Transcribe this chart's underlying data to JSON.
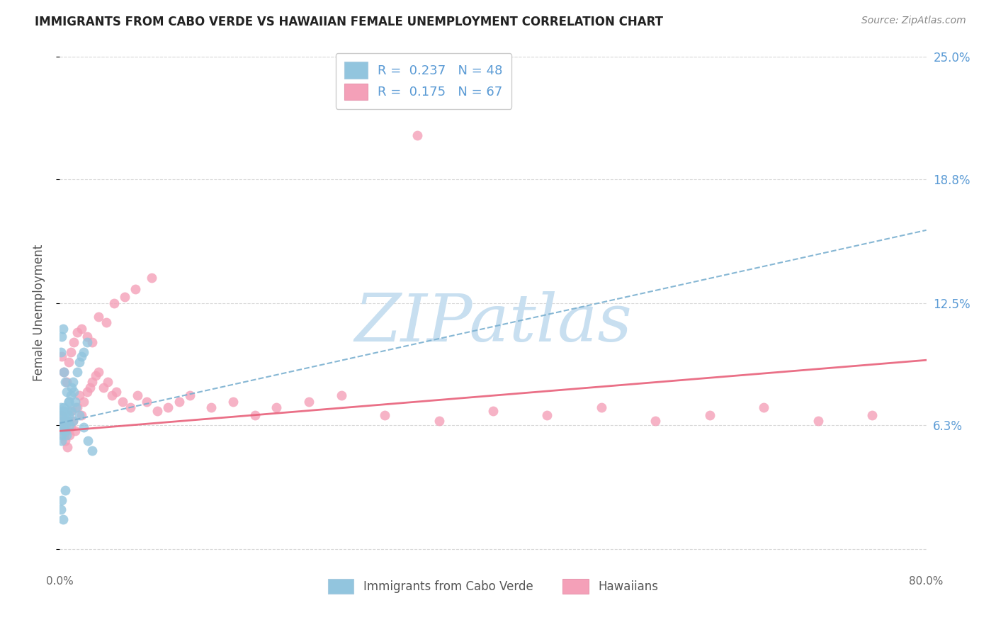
{
  "title": "IMMIGRANTS FROM CABO VERDE VS HAWAIIAN FEMALE UNEMPLOYMENT CORRELATION CHART",
  "source": "Source: ZipAtlas.com",
  "ylabel": "Female Unemployment",
  "legend_label1": "Immigrants from Cabo Verde",
  "legend_label2": "Hawaiians",
  "R1": 0.237,
  "N1": 48,
  "R2": 0.175,
  "N2": 67,
  "xmin": 0.0,
  "xmax": 0.8,
  "ymin": -0.01,
  "ymax": 0.25,
  "yticks": [
    0.0,
    0.063,
    0.125,
    0.188,
    0.25
  ],
  "ytick_labels": [
    "",
    "6.3%",
    "12.5%",
    "18.8%",
    "25.0%"
  ],
  "xticks": [
    0.0,
    0.1,
    0.2,
    0.3,
    0.4,
    0.5,
    0.6,
    0.7,
    0.8
  ],
  "xtick_labels": [
    "0.0%",
    "",
    "",
    "",
    "",
    "",
    "",
    "",
    "80.0%"
  ],
  "color_blue": "#92c5de",
  "color_pink": "#f4a0b8",
  "color_blue_line": "#7ab0d0",
  "color_pink_line": "#e8607a",
  "color_axis_right": "#5b9bd5",
  "watermark_color": "#c8dff0",
  "background_color": "#ffffff",
  "grid_color": "#d8d8d8",
  "blue_line_x0": 0.0,
  "blue_line_y0": 0.064,
  "blue_line_x1": 0.8,
  "blue_line_y1": 0.162,
  "pink_line_x0": 0.0,
  "pink_line_y0": 0.06,
  "pink_line_x1": 0.8,
  "pink_line_y1": 0.096,
  "blue_scatter_x": [
    0.001,
    0.001,
    0.002,
    0.002,
    0.002,
    0.003,
    0.003,
    0.003,
    0.004,
    0.004,
    0.004,
    0.005,
    0.005,
    0.006,
    0.006,
    0.007,
    0.007,
    0.008,
    0.008,
    0.009,
    0.01,
    0.011,
    0.012,
    0.013,
    0.014,
    0.016,
    0.018,
    0.02,
    0.022,
    0.025,
    0.001,
    0.002,
    0.003,
    0.004,
    0.005,
    0.006,
    0.008,
    0.01,
    0.012,
    0.015,
    0.018,
    0.022,
    0.026,
    0.03,
    0.001,
    0.002,
    0.003,
    0.005
  ],
  "blue_scatter_y": [
    0.068,
    0.072,
    0.063,
    0.058,
    0.055,
    0.065,
    0.07,
    0.06,
    0.062,
    0.068,
    0.072,
    0.065,
    0.06,
    0.058,
    0.064,
    0.066,
    0.07,
    0.075,
    0.068,
    0.063,
    0.078,
    0.082,
    0.085,
    0.08,
    0.075,
    0.09,
    0.095,
    0.098,
    0.1,
    0.105,
    0.1,
    0.108,
    0.112,
    0.09,
    0.085,
    0.08,
    0.075,
    0.07,
    0.065,
    0.072,
    0.068,
    0.062,
    0.055,
    0.05,
    0.02,
    0.025,
    0.015,
    0.03
  ],
  "pink_scatter_x": [
    0.001,
    0.002,
    0.003,
    0.004,
    0.005,
    0.006,
    0.007,
    0.008,
    0.009,
    0.01,
    0.011,
    0.012,
    0.014,
    0.016,
    0.018,
    0.02,
    0.022,
    0.025,
    0.028,
    0.03,
    0.033,
    0.036,
    0.04,
    0.044,
    0.048,
    0.052,
    0.058,
    0.065,
    0.072,
    0.08,
    0.09,
    0.1,
    0.11,
    0.12,
    0.14,
    0.16,
    0.18,
    0.2,
    0.23,
    0.26,
    0.3,
    0.35,
    0.4,
    0.45,
    0.5,
    0.55,
    0.6,
    0.65,
    0.7,
    0.75,
    0.002,
    0.004,
    0.006,
    0.008,
    0.01,
    0.013,
    0.016,
    0.02,
    0.025,
    0.03,
    0.036,
    0.043,
    0.05,
    0.06,
    0.07,
    0.085,
    0.33
  ],
  "pink_scatter_y": [
    0.062,
    0.068,
    0.065,
    0.058,
    0.055,
    0.06,
    0.052,
    0.065,
    0.058,
    0.062,
    0.07,
    0.065,
    0.06,
    0.072,
    0.078,
    0.068,
    0.075,
    0.08,
    0.082,
    0.085,
    0.088,
    0.09,
    0.082,
    0.085,
    0.078,
    0.08,
    0.075,
    0.072,
    0.078,
    0.075,
    0.07,
    0.072,
    0.075,
    0.078,
    0.072,
    0.075,
    0.068,
    0.072,
    0.075,
    0.078,
    0.068,
    0.065,
    0.07,
    0.068,
    0.072,
    0.065,
    0.068,
    0.072,
    0.065,
    0.068,
    0.098,
    0.09,
    0.085,
    0.095,
    0.1,
    0.105,
    0.11,
    0.112,
    0.108,
    0.105,
    0.118,
    0.115,
    0.125,
    0.128,
    0.132,
    0.138,
    0.21
  ]
}
